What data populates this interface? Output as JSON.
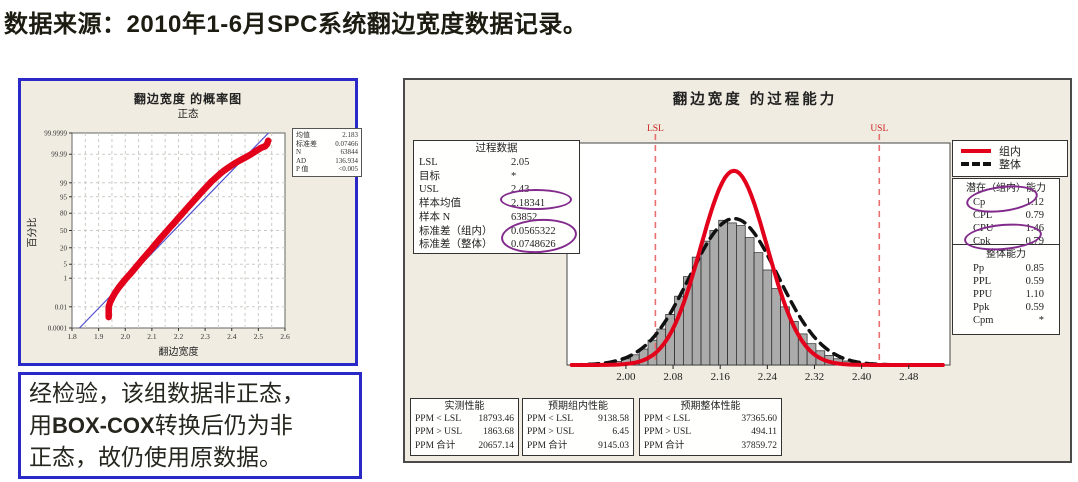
{
  "page_title": "数据来源：2010年1-6月SPC系统翻边宽度数据记录。",
  "note_box": {
    "segments": [
      {
        "text": "经检验，该组数据非正态，",
        "bold": false
      },
      {
        "text": "用",
        "bold": false
      },
      {
        "text": "BOX-COX",
        "bold": true
      },
      {
        "text": "转换后仍为非",
        "bold": false
      },
      {
        "text": "正态，故仍使用原数据。",
        "bold": false
      }
    ]
  },
  "chart_data": [
    {
      "id": "probability-plot",
      "type": "scatter",
      "title": "翻边宽度 的概率图",
      "subtitle": "正态",
      "xlabel": "翻边宽度",
      "ylabel": "百分比",
      "xlim": [
        1.8,
        2.6
      ],
      "x_ticks": [
        "1.8",
        "1.9",
        "2.0",
        "2.1",
        "2.2",
        "2.3",
        "2.4",
        "2.5",
        "2.6"
      ],
      "y_ticks": [
        "99.9999",
        "99.99",
        "99",
        "95",
        "80",
        "50",
        "20",
        "5",
        "1",
        "0.01",
        "0.0001"
      ],
      "y_scale": "normal-probability",
      "grid": true,
      "series_color": "#e2001a",
      "fit_line_color": "#5050d0",
      "fit_line": {
        "mean": 2.183,
        "stdev": 0.07466
      },
      "data_percentiles": [
        [
          1.938,
          0.0012
        ],
        [
          1.938,
          0.01
        ],
        [
          1.944,
          0.025
        ],
        [
          1.952,
          0.055
        ],
        [
          1.962,
          0.12
        ],
        [
          1.976,
          0.28
        ],
        [
          1.99,
          0.55
        ],
        [
          2.004,
          1.0
        ],
        [
          2.02,
          1.8
        ],
        [
          2.036,
          3.2
        ],
        [
          2.052,
          5.5
        ],
        [
          2.068,
          8.8
        ],
        [
          2.084,
          13.2
        ],
        [
          2.1,
          19
        ],
        [
          2.116,
          26.5
        ],
        [
          2.132,
          35
        ],
        [
          2.148,
          44
        ],
        [
          2.164,
          53.5
        ],
        [
          2.18,
          62.5
        ],
        [
          2.196,
          71
        ],
        [
          2.212,
          78.5
        ],
        [
          2.228,
          84.8
        ],
        [
          2.244,
          89.6
        ],
        [
          2.26,
          93.2
        ],
        [
          2.276,
          95.7
        ],
        [
          2.292,
          97.4
        ],
        [
          2.308,
          98.5
        ],
        [
          2.324,
          99.15
        ],
        [
          2.34,
          99.5
        ],
        [
          2.356,
          99.71
        ],
        [
          2.372,
          99.83
        ],
        [
          2.39,
          99.9
        ],
        [
          2.41,
          99.945
        ],
        [
          2.43,
          99.968
        ],
        [
          2.45,
          99.981
        ],
        [
          2.47,
          99.989
        ],
        [
          2.49,
          99.9945
        ],
        [
          2.51,
          99.9972
        ],
        [
          2.526,
          99.998
        ],
        [
          2.533,
          99.9988
        ],
        [
          2.537,
          99.9994
        ]
      ],
      "stats_rows": [
        {
          "label": "均值",
          "value": "2.183"
        },
        {
          "label": "标准差",
          "value": "0.07466"
        },
        {
          "label": "N",
          "value": "63844"
        },
        {
          "label": "AD",
          "value": "136.934"
        },
        {
          "label": "P 值",
          "value": "<0.005"
        }
      ]
    },
    {
      "id": "capability-histogram",
      "type": "bar",
      "title": "翻边宽度  的过程能力",
      "xlim": [
        1.9,
        2.55
      ],
      "bin_width": 0.015,
      "x_tick_labels": [
        "2.00",
        "2.08",
        "2.16",
        "2.24",
        "2.32",
        "2.40",
        "2.48"
      ],
      "lsl": {
        "label": "LSL",
        "value": 2.05
      },
      "usl": {
        "label": "USL",
        "value": 2.43
      },
      "bar_fill": "#ababab",
      "spec_line_color": "#e87070",
      "bins": [
        [
          1.955,
          0.006
        ],
        [
          1.97,
          0.01
        ],
        [
          1.985,
          0.016
        ],
        [
          2.0,
          0.028
        ],
        [
          2.015,
          0.046
        ],
        [
          2.03,
          0.072
        ],
        [
          2.045,
          0.112
        ],
        [
          2.06,
          0.162
        ],
        [
          2.075,
          0.228
        ],
        [
          2.09,
          0.31
        ],
        [
          2.105,
          0.398
        ],
        [
          2.12,
          0.486
        ],
        [
          2.135,
          0.558
        ],
        [
          2.15,
          0.606
        ],
        [
          2.165,
          0.652
        ],
        [
          2.18,
          0.64
        ],
        [
          2.195,
          0.628
        ],
        [
          2.21,
          0.574
        ],
        [
          2.225,
          0.506
        ],
        [
          2.24,
          0.428
        ],
        [
          2.255,
          0.344
        ],
        [
          2.27,
          0.262
        ],
        [
          2.285,
          0.196
        ],
        [
          2.3,
          0.14
        ],
        [
          2.315,
          0.096
        ],
        [
          2.33,
          0.064
        ],
        [
          2.345,
          0.043
        ],
        [
          2.36,
          0.028
        ],
        [
          2.375,
          0.018
        ],
        [
          2.39,
          0.012
        ],
        [
          2.405,
          0.008
        ],
        [
          2.42,
          0.006
        ],
        [
          2.435,
          0.004
        ],
        [
          2.45,
          0.003
        ],
        [
          2.465,
          0.002
        ],
        [
          2.48,
          0.002
        ],
        [
          2.495,
          0.001
        ]
      ],
      "curves": [
        {
          "name": "组内",
          "color": "#e2001a",
          "width": 4,
          "mean": 2.18341,
          "stdev": 0.0565322,
          "peak": 0.875
        },
        {
          "name": "整体",
          "color": "#111111",
          "width": 3.5,
          "dash": "10,7",
          "mean": 2.18341,
          "stdev": 0.0748626,
          "peak": 0.66
        }
      ]
    }
  ],
  "process_data": {
    "header": "过程数据",
    "rows": [
      {
        "label": "LSL",
        "value": "2.05"
      },
      {
        "label": "目标",
        "value": "*"
      },
      {
        "label": "USL",
        "value": "2.43"
      },
      {
        "label": "样本均值",
        "value": "2.18341"
      },
      {
        "label": "样本 N",
        "value": "63852"
      },
      {
        "label": "标准差（组内）",
        "value": "0.0565322"
      },
      {
        "label": "标准差（整体）",
        "value": "0.0748626"
      }
    ]
  },
  "legend": {
    "items": [
      {
        "label": "组内"
      },
      {
        "label": "整体"
      }
    ]
  },
  "within_capability": {
    "header": "潜在（组内）能力",
    "rows": [
      {
        "label": "Cp",
        "value": "1.12"
      },
      {
        "label": "CPL",
        "value": "0.79"
      },
      {
        "label": "CPU",
        "value": "1.46"
      },
      {
        "label": "Cpk",
        "value": "0.79"
      }
    ]
  },
  "overall_capability": {
    "header": "整体能力",
    "rows": [
      {
        "label": "Pp",
        "value": "0.85"
      },
      {
        "label": "PPL",
        "value": "0.59"
      },
      {
        "label": "PPU",
        "value": "1.10"
      },
      {
        "label": "Ppk",
        "value": "0.59"
      },
      {
        "label": "Cpm",
        "value": "*"
      }
    ]
  },
  "performance_tables": [
    {
      "header": "实测性能",
      "rows": [
        {
          "label": "PPM < LSL",
          "value": "18793.46"
        },
        {
          "label": "PPM > USL",
          "value": "1863.68"
        },
        {
          "label": "PPM 合计",
          "value": "20657.14"
        }
      ]
    },
    {
      "header": "预期组内性能",
      "rows": [
        {
          "label": "PPM < LSL",
          "value": "9138.58"
        },
        {
          "label": "PPM > USL",
          "value": "6.45"
        },
        {
          "label": "PPM 合计",
          "value": "9145.03"
        }
      ]
    },
    {
      "header": "预期整体性能",
      "rows": [
        {
          "label": "PPM < LSL",
          "value": "37365.60"
        },
        {
          "label": "PPM > USL",
          "value": "494.11"
        },
        {
          "label": "PPM 合计",
          "value": "37859.72"
        }
      ]
    }
  ],
  "colors": {
    "within_red": "#e2001a",
    "overall_black": "#111111",
    "spec_line": "#e87070",
    "highlight_purple": "#822b8c",
    "panel_beige": "#f0ece1",
    "box_border_blue": "#2b28c8"
  }
}
